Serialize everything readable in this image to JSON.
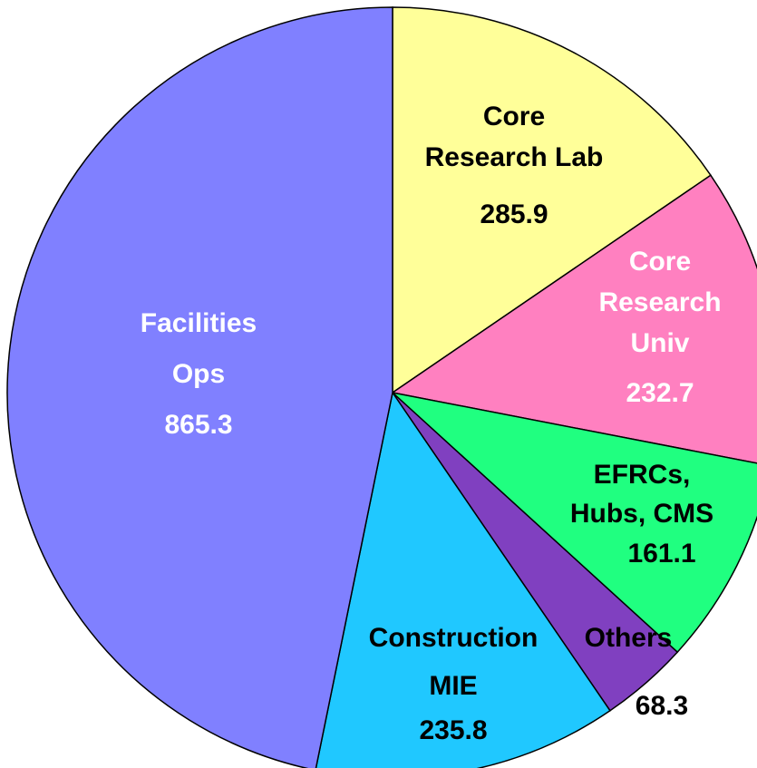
{
  "chart_data": {
    "type": "pie",
    "categories": [
      [
        "Core",
        "Research Lab"
      ],
      [
        "Core",
        "Research",
        "Univ"
      ],
      [
        "EFRCs,",
        "Hubs, CMS"
      ],
      [
        "Others"
      ],
      [
        "Construction",
        "MIE"
      ],
      [
        "Facilities",
        "Ops"
      ]
    ],
    "values": [
      285.9,
      232.7,
      161.1,
      68.3,
      235.8,
      865.3
    ],
    "colors": [
      "#ffff99",
      "#ff80c0",
      "#20ff80",
      "#8040c0",
      "#20c8ff",
      "#8080ff"
    ],
    "label_colors": [
      "#000000",
      "#ffffff",
      "#000000",
      "#000000",
      "#000000",
      "#ffffff"
    ],
    "start_angle": 0,
    "direction": "clockwise"
  }
}
